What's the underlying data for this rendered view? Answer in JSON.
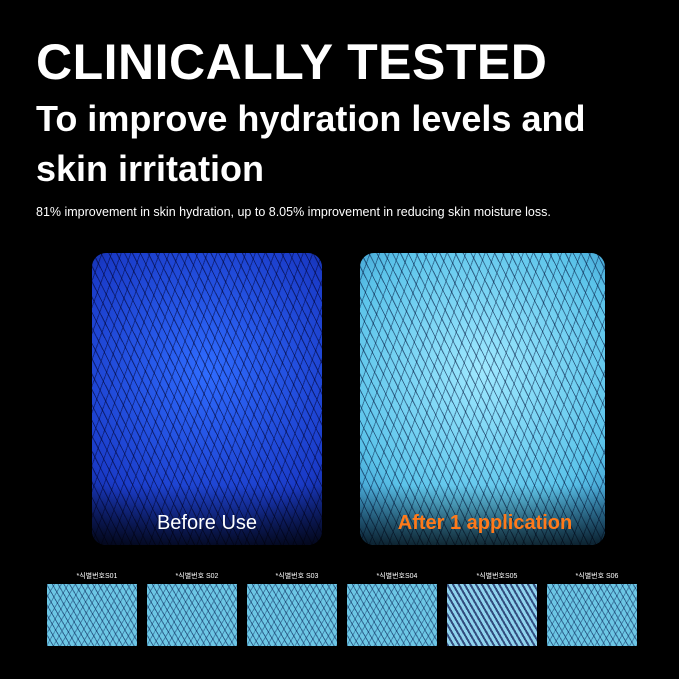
{
  "headline": "CLINICALLY TESTED",
  "subheadline": "To improve hydration levels and skin irritation",
  "description": "81% improvement in skin hydration, up to 8.05% improvement in reducing skin moisture loss.",
  "comparison": {
    "before_label": "Before Use",
    "after_label": "After 1 application",
    "after_color": "#ff7a1a"
  },
  "samples": [
    "*식별번호S01",
    "*식별번호 S02",
    "*식별번호 S03",
    "*식별번호S04",
    "*식별번호S05",
    "*식별번호 S06"
  ]
}
